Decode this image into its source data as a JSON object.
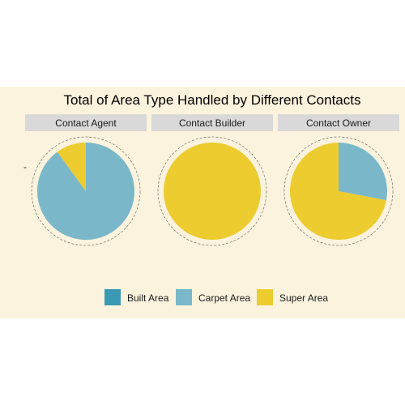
{
  "colors": {
    "background": "#fcf3de",
    "strip": "#d9d9d9",
    "built_area": "#3a9ab3",
    "carpet_area": "#7ab8c9",
    "super_area": "#edcc2f"
  },
  "chart_data": {
    "type": "pie",
    "title": "Total of Area Type Handled by Different Contacts",
    "legend_position": "bottom",
    "legend": [
      {
        "name": "Built Area",
        "color": "#3a9ab3"
      },
      {
        "name": "Carpet Area",
        "color": "#7ab8c9"
      },
      {
        "name": "Super Area",
        "color": "#edcc2f"
      }
    ],
    "facets": [
      {
        "label": "Contact Agent",
        "slices": [
          {
            "category": "Built Area",
            "value": 0.0
          },
          {
            "category": "Carpet Area",
            "value": 0.9
          },
          {
            "category": "Super Area",
            "value": 0.1
          }
        ]
      },
      {
        "label": "Contact Builder",
        "slices": [
          {
            "category": "Built Area",
            "value": 0.0
          },
          {
            "category": "Carpet Area",
            "value": 0.0
          },
          {
            "category": "Super Area",
            "value": 1.0
          }
        ]
      },
      {
        "label": "Contact Owner",
        "slices": [
          {
            "category": "Built Area",
            "value": 0.0
          },
          {
            "category": "Carpet Area",
            "value": 0.28
          },
          {
            "category": "Super Area",
            "value": 0.72
          }
        ]
      }
    ],
    "y_tick_label": "-"
  }
}
